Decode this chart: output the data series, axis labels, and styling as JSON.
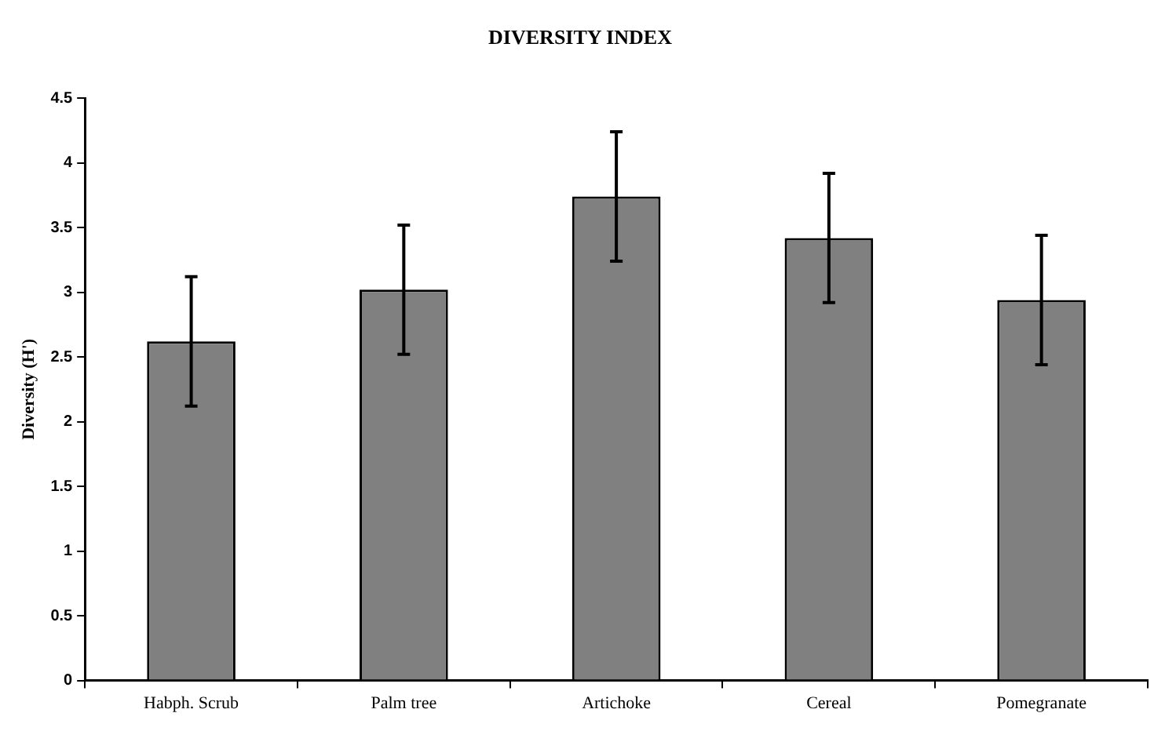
{
  "chart_data": {
    "type": "bar",
    "title": "DIVERSITY INDEX",
    "ylabel": "Diversity (H')",
    "categories": [
      "Habph. Scrub",
      "Palm tree",
      "Artichoke",
      "Cereal",
      "Pomegranate"
    ],
    "values": [
      2.62,
      3.02,
      3.74,
      3.42,
      2.94
    ],
    "errors": [
      0.5,
      0.5,
      0.5,
      0.5,
      0.5
    ],
    "color": "#808080",
    "ylim": [
      0,
      4.5
    ],
    "yticks": [
      0,
      0.5,
      1,
      1.5,
      2,
      2.5,
      3,
      3.5,
      4,
      4.5
    ],
    "grid": false,
    "legend": false
  }
}
